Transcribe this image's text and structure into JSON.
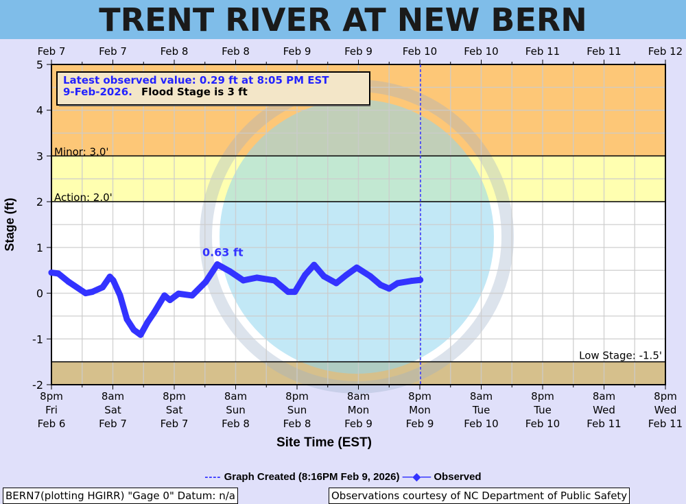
{
  "title": "TRENT RIVER AT NEW BERN",
  "info_box": {
    "line1": "Latest observed value: 0.29 ft at 8:05 PM EST",
    "line2_date": "9-Feb-2026.",
    "line2_flood": "Flood Stage is 3 ft"
  },
  "legend": {
    "graph_created": "Graph Created (8:16PM Feb 9, 2026)",
    "observed": "Observed"
  },
  "footer": {
    "left": "BERN7(plotting HGIRR) \"Gage 0\" Datum: n/a",
    "right": "Observations courtesy of NC Department of Public Safety"
  },
  "colors": {
    "title_bar": "#7fbde9",
    "background": "#e0e0fa",
    "moderate_band": "#fdc777",
    "minor_band": "#ffffb0",
    "low_band": "#d6c08c",
    "observed": "#3333ff"
  },
  "chart_data": {
    "type": "line",
    "title": "TRENT RIVER AT NEW BERN",
    "xlabel": "Site Time (EST)",
    "ylabel": "Stage (ft)",
    "ylim": [
      -2,
      5
    ],
    "xlim": [
      "2026-02-06T20:00",
      "2026-02-11T20:00"
    ],
    "yticks": [
      "5",
      "4",
      "3",
      "2",
      "1",
      "0",
      "-1",
      "-2"
    ],
    "xticks_bottom": [
      [
        "8pm",
        "Fri",
        "Feb 6"
      ],
      [
        "8am",
        "Sat",
        "Feb 7"
      ],
      [
        "8pm",
        "Sat",
        "Feb 7"
      ],
      [
        "8am",
        "Sun",
        "Feb 8"
      ],
      [
        "8pm",
        "Sun",
        "Feb 8"
      ],
      [
        "8am",
        "Mon",
        "Feb 9"
      ],
      [
        "8pm",
        "Mon",
        "Feb 9"
      ],
      [
        "8am",
        "Tue",
        "Feb 10"
      ],
      [
        "8pm",
        "Tue",
        "Feb 10"
      ],
      [
        "8am",
        "Wed",
        "Feb 11"
      ],
      [
        "8pm",
        "Wed",
        "Feb 11"
      ]
    ],
    "xticks_top": [
      "Feb 7",
      "Feb 7",
      "Feb 8",
      "Feb 8",
      "Feb 9",
      "Feb 9",
      "Feb 10",
      "Feb 10",
      "Feb 11",
      "Feb 11",
      "Feb 12"
    ],
    "grid": true,
    "thresholds": [
      {
        "label": "Minor: 3.0'",
        "value": 3.0
      },
      {
        "label": "Action: 2.0'",
        "value": 2.0
      },
      {
        "label": "Low Stage: -1.5'",
        "value": -1.5
      }
    ],
    "graph_created_time": "2026-02-09T20:16",
    "peak_annotation": {
      "label": "0.63 ft",
      "x": "2026-02-08T04:25",
      "y": 0.63
    },
    "series": [
      {
        "name": "Observed",
        "x": [
          "2026-02-06T20:00",
          "2026-02-06T21:20",
          "2026-02-06T23:20",
          "2026-02-07T02:40",
          "2026-02-07T04:00",
          "2026-02-07T06:00",
          "2026-02-07T07:25",
          "2026-02-07T08:05",
          "2026-02-07T09:25",
          "2026-02-07T10:45",
          "2026-02-07T12:05",
          "2026-02-07T13:25",
          "2026-02-07T14:45",
          "2026-02-07T16:05",
          "2026-02-07T18:05",
          "2026-02-07T19:10",
          "2026-02-07T20:50",
          "2026-02-07T23:30",
          "2026-02-08T02:10",
          "2026-02-08T04:25",
          "2026-02-08T06:50",
          "2026-02-08T09:30",
          "2026-02-08T12:10",
          "2026-02-08T15:35",
          "2026-02-08T18:15",
          "2026-02-08T19:35",
          "2026-02-08T21:35",
          "2026-02-08T23:20",
          "2026-02-09T01:15",
          "2026-02-09T03:40",
          "2026-02-09T05:40",
          "2026-02-09T07:40",
          "2026-02-09T10:20",
          "2026-02-09T12:20",
          "2026-02-09T14:00",
          "2026-02-09T15:40",
          "2026-02-09T18:25",
          "2026-02-09T20:05"
        ],
        "values": [
          0.45,
          0.43,
          0.25,
          0.0,
          0.03,
          0.13,
          0.36,
          0.28,
          -0.05,
          -0.57,
          -0.8,
          -0.91,
          -0.64,
          -0.42,
          -0.05,
          -0.15,
          -0.01,
          -0.05,
          0.25,
          0.63,
          0.48,
          0.28,
          0.34,
          0.28,
          0.03,
          0.03,
          0.4,
          0.62,
          0.37,
          0.22,
          0.4,
          0.56,
          0.37,
          0.18,
          0.1,
          0.22,
          0.27,
          0.29
        ]
      }
    ]
  }
}
